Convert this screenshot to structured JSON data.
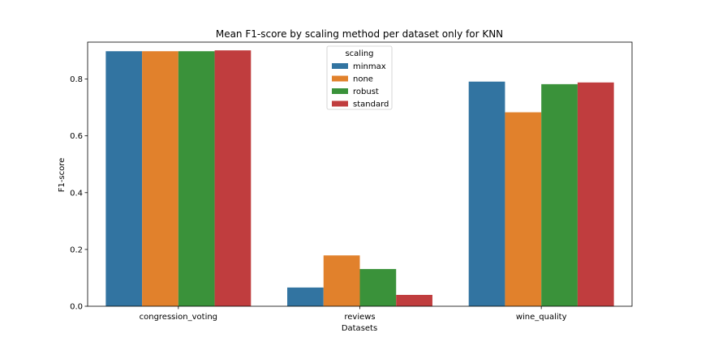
{
  "chart_data": {
    "type": "bar",
    "title": "Mean F1-score by scaling method per dataset only for KNN",
    "xlabel": "Datasets",
    "ylabel": "F1-score",
    "categories": [
      "congression_voting",
      "reviews",
      "wine_quality"
    ],
    "ylim": [
      0,
      0.93
    ],
    "yticks": [
      0.0,
      0.2,
      0.4,
      0.6,
      0.8
    ],
    "ytick_labels": [
      "0.0",
      "0.2",
      "0.4",
      "0.6",
      "0.8"
    ],
    "legend": {
      "title": "scaling",
      "placement": "upper center"
    },
    "series": [
      {
        "name": "minmax",
        "color": "#3274a1",
        "values": [
          0.898,
          0.066,
          0.791
        ]
      },
      {
        "name": "none",
        "color": "#e1812c",
        "values": [
          0.898,
          0.179,
          0.683
        ]
      },
      {
        "name": "robust",
        "color": "#3a923a",
        "values": [
          0.898,
          0.131,
          0.782
        ]
      },
      {
        "name": "standard",
        "color": "#c03d3e",
        "values": [
          0.901,
          0.04,
          0.788
        ]
      }
    ]
  }
}
